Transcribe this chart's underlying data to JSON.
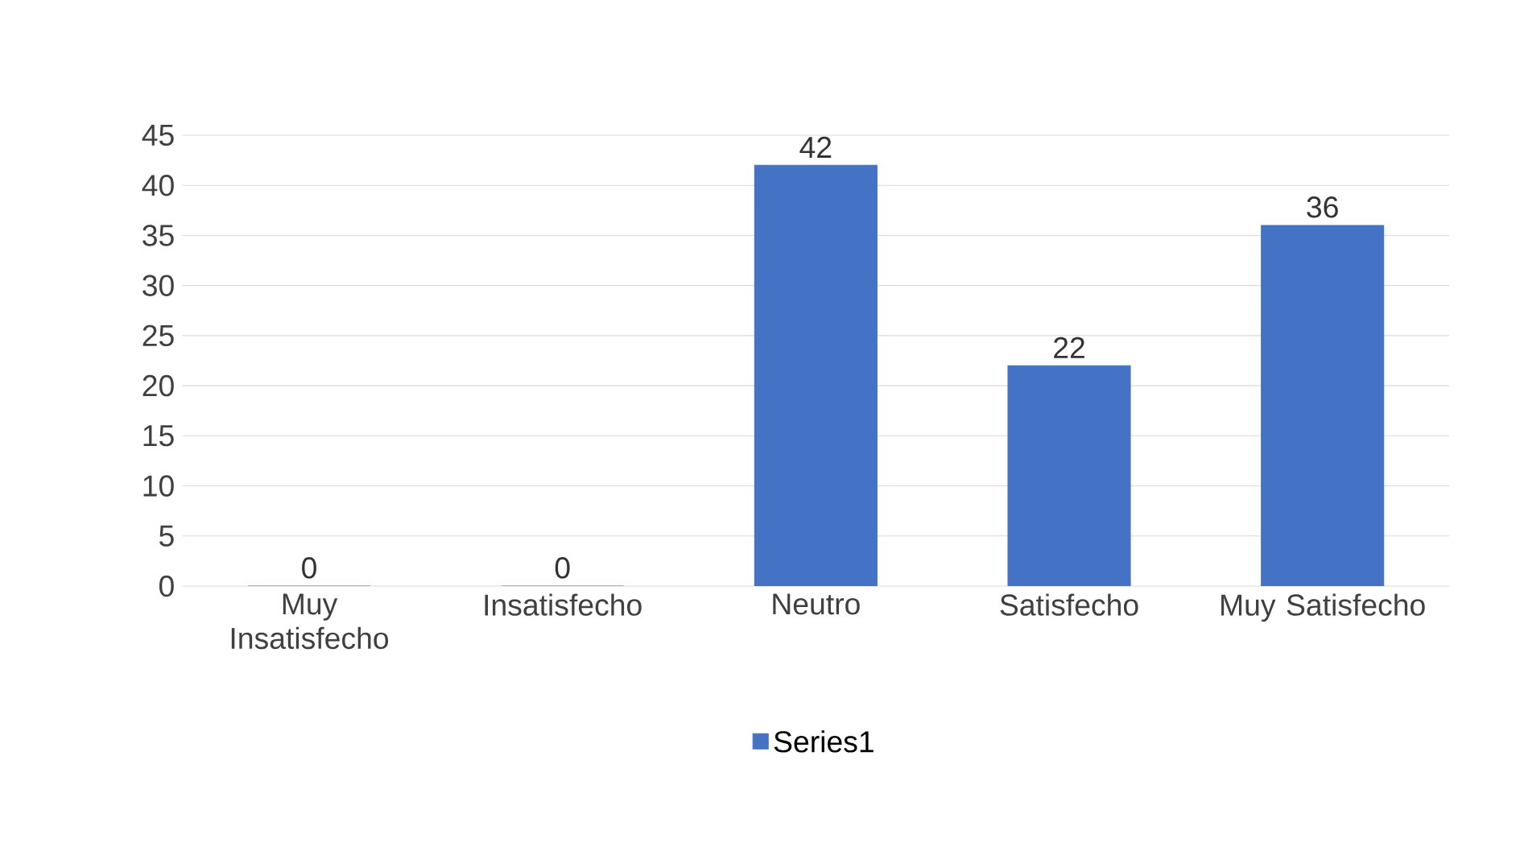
{
  "chart_data": {
    "type": "bar",
    "categories": [
      "Muy Insatisfecho",
      "Insatisfecho",
      "Neutro",
      "Satisfecho",
      "Muy Satisfecho"
    ],
    "series": [
      {
        "name": "Series1",
        "color": "#4472c4",
        "values": [
          0,
          0,
          42,
          22,
          36
        ]
      }
    ],
    "ylim": [
      0,
      45
    ],
    "yticks": [
      0,
      5,
      10,
      15,
      20,
      25,
      30,
      35,
      40,
      45
    ],
    "grid": "y",
    "legend": "bottom",
    "data_labels": true
  }
}
